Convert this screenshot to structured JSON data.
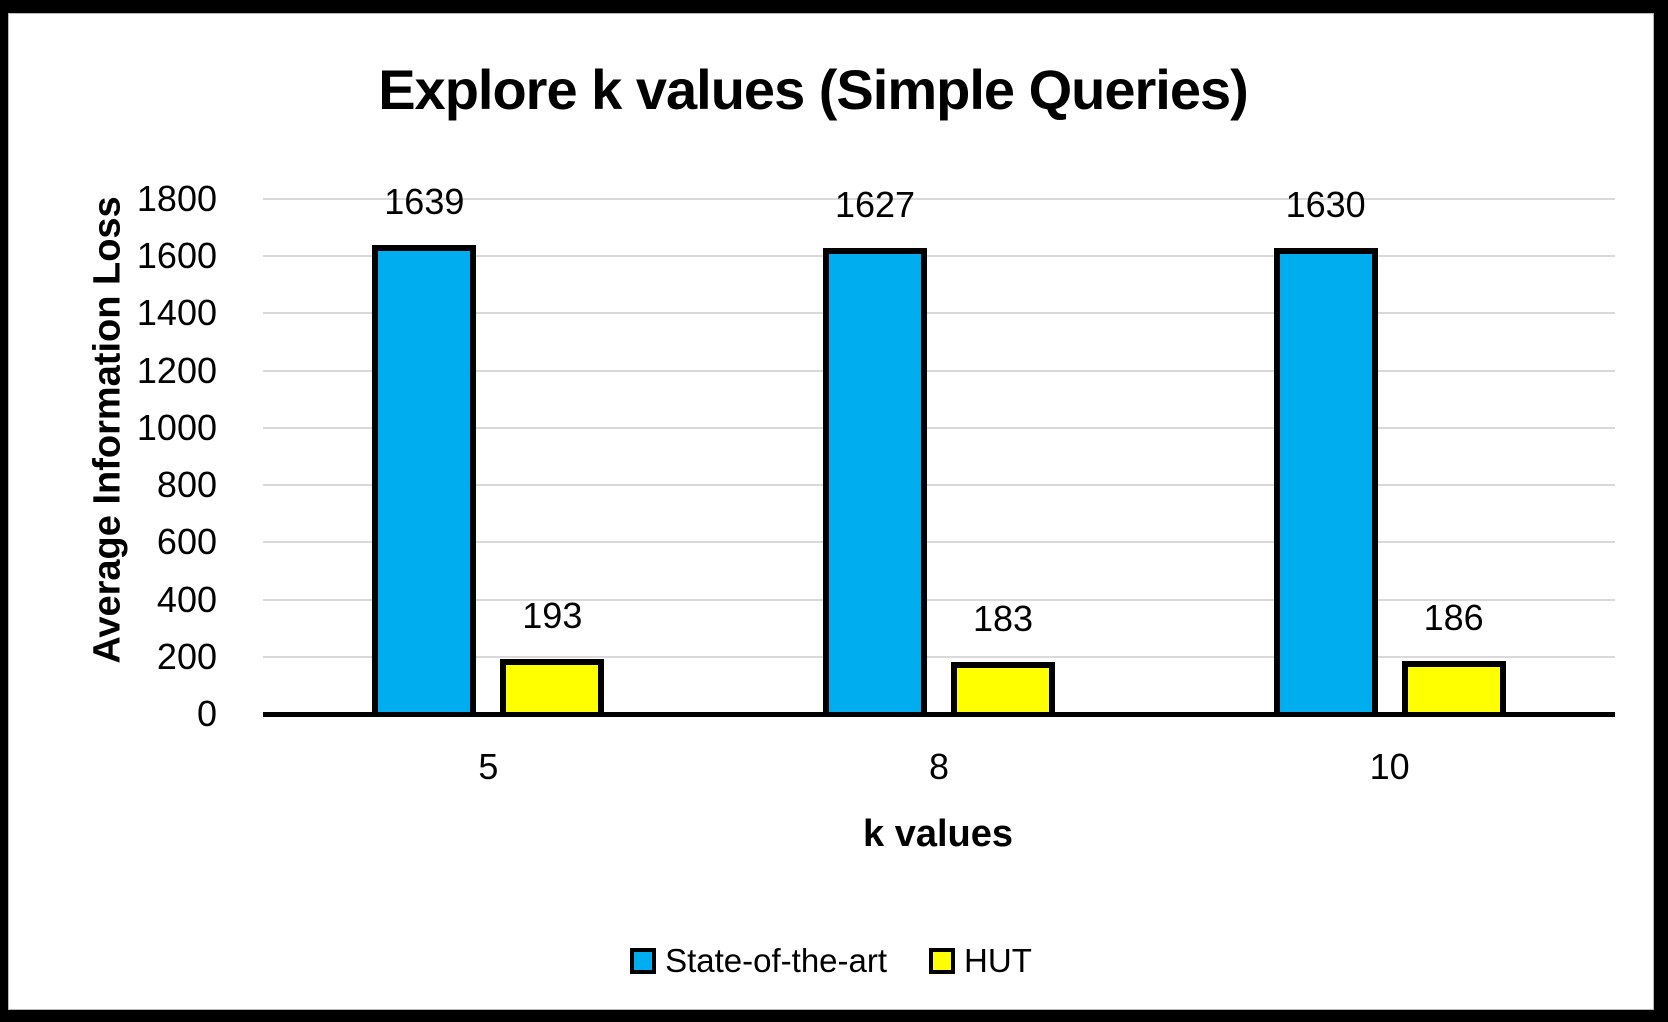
{
  "chart_data": {
    "type": "bar",
    "title": "Explore k values (Simple Queries)",
    "xlabel": "k values",
    "ylabel": "Average Information Loss",
    "categories": [
      "5",
      "8",
      "10"
    ],
    "series": [
      {
        "name": "State-of-the-art",
        "color": "#00AEEF",
        "values": [
          1639,
          1627,
          1630
        ]
      },
      {
        "name": "HUT",
        "color": "#FFFF00",
        "values": [
          193,
          183,
          186
        ]
      }
    ],
    "ylim": [
      0,
      1800
    ],
    "yticks": [
      0,
      200,
      400,
      600,
      800,
      1000,
      1200,
      1400,
      1600,
      1800
    ],
    "grid": true,
    "gridline_color": "#D9D9D9",
    "axis_line_color": "#000000",
    "bar_border_color": "#000000",
    "data_labels_shown": true,
    "legend_position": "bottom"
  },
  "frame": {
    "background": "#FFFFFF",
    "border_color": "#000000"
  }
}
